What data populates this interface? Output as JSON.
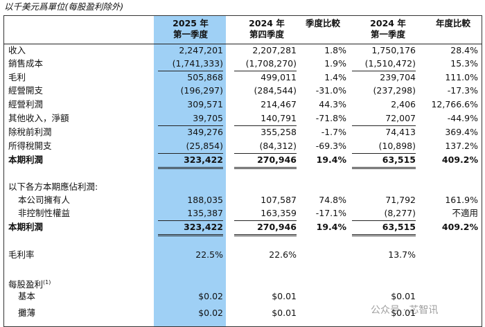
{
  "caption": "以千美元爲單位(每股盈利除外)",
  "header": [
    [
      "2025 年",
      "第一季度"
    ],
    [
      "2024 年",
      "第四季度"
    ],
    [
      "季度比較"
    ],
    [
      "2024 年",
      "第一季度"
    ],
    [
      "年度比較"
    ]
  ],
  "rows": [
    {
      "label": "收入",
      "cells": [
        "2,247,201",
        "2,207,281",
        "1.8%",
        "1,750,176",
        "28.4%"
      ]
    },
    {
      "label": "銷售成本",
      "cells": [
        "(1,741,333)",
        "(1,708,270)",
        "1.9%",
        "(1,510,472)",
        "15.3%"
      ]
    },
    {
      "label": "毛利",
      "cells": [
        "505,868",
        "499,011",
        "1.4%",
        "239,704",
        "111.0%"
      ]
    },
    {
      "label": "經營開支",
      "cells": [
        "(196,297)",
        "(284,544)",
        "-31.0%",
        "(237,298)",
        "-17.3%"
      ]
    },
    {
      "label": "經營利潤",
      "cells": [
        "309,571",
        "214,467",
        "44.3%",
        "2,406",
        "12,766.6%"
      ]
    },
    {
      "label": "其他收入，淨額",
      "cells": [
        "39,705",
        "140,791",
        "-71.8%",
        "72,007",
        "-44.9%"
      ]
    },
    {
      "label": "除稅前利潤",
      "cells": [
        "349,276",
        "355,258",
        "-1.7%",
        "74,413",
        "369.4%"
      ]
    },
    {
      "label": "所得稅開支",
      "cells": [
        "(25,854)",
        "(84,312)",
        "-69.3%",
        "(10,898)",
        "137.2%"
      ]
    },
    {
      "label": "本期利潤",
      "bold": true,
      "cells": [
        "323,422",
        "270,946",
        "19.4%",
        "63,515",
        "409.2%"
      ]
    },
    {
      "label": "以下各方本期應佔利潤:",
      "cells": []
    },
    {
      "label": "本公司擁有人",
      "cells": [
        "188,035",
        "107,587",
        "74.8%",
        "71,792",
        "161.9%"
      ]
    },
    {
      "label": "非控制性權益",
      "cells": [
        "135,387",
        "163,359",
        "-17.1%",
        "(8,277)",
        "不適用"
      ]
    },
    {
      "label": "本期利潤",
      "bold": true,
      "cells": [
        "323,422",
        "270,946",
        "19.4%",
        "63,515",
        "409.2%"
      ]
    },
    {
      "label": "毛利率",
      "cells": [
        "22.5%",
        "22.6%",
        "",
        "13.7%",
        ""
      ]
    },
    {
      "label": "每股盈利",
      "note": "(1)",
      "cells": []
    },
    {
      "label": "基本",
      "cells": [
        "$0.02",
        "$0.01",
        "",
        "$0.01",
        ""
      ]
    },
    {
      "label": "攤薄",
      "cells": [
        "$0.02",
        "$0.01",
        "",
        "$0.01",
        ""
      ]
    }
  ],
  "watermark": "公众号 · 芯智讯"
}
